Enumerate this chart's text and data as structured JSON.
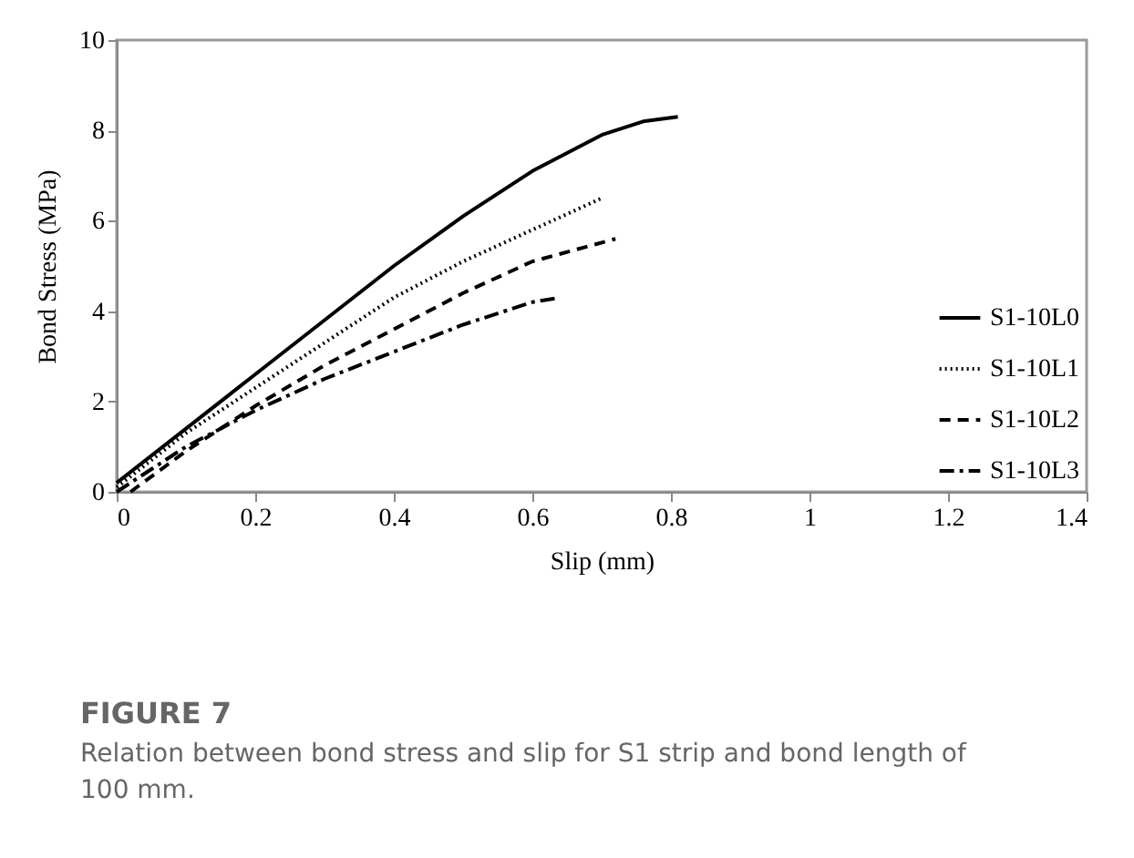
{
  "chart_data": {
    "type": "line",
    "xlabel": "Slip (mm)",
    "ylabel": "Bond Stress (MPa)",
    "xlim": [
      0,
      1.4
    ],
    "xticks": [
      0,
      0.2,
      0.4,
      0.6,
      0.8,
      1,
      1.2,
      1.4
    ],
    "ylim": [
      0,
      10
    ],
    "yticks": [
      0,
      2,
      4,
      6,
      8,
      10
    ],
    "grid": false,
    "legend": "bottom right",
    "marker": "none",
    "annotations": [
      "FIGURE 7",
      "Relation between bond stress and slip for S1 strip and bond length of 100 mm."
    ],
    "series": [
      {
        "name": "S1-10L0",
        "color": "#000000",
        "line_style": "solid",
        "x": [
          0,
          0.1,
          0.2,
          0.3,
          0.4,
          0.5,
          0.6,
          0.7,
          0.76,
          0.81
        ],
        "values": [
          0.2,
          1.4,
          2.6,
          3.8,
          5.0,
          6.1,
          7.1,
          7.9,
          8.2,
          8.3
        ]
      },
      {
        "name": "S1-10L1",
        "color": "#000000",
        "line_style": "dotted",
        "x": [
          0,
          0.1,
          0.2,
          0.3,
          0.4,
          0.5,
          0.6,
          0.7
        ],
        "values": [
          0.1,
          1.3,
          2.3,
          3.3,
          4.3,
          5.1,
          5.8,
          6.5
        ]
      },
      {
        "name": "S1-10L2",
        "color": "#000000",
        "line_style": "dashed",
        "x": [
          0.02,
          0.1,
          0.2,
          0.3,
          0.4,
          0.5,
          0.6,
          0.72
        ],
        "values": [
          0,
          0.9,
          1.9,
          2.8,
          3.6,
          4.4,
          5.1,
          5.6
        ]
      },
      {
        "name": "S1-10L3",
        "color": "#000000",
        "line_style": "dashdot",
        "x": [
          0,
          0.1,
          0.2,
          0.3,
          0.4,
          0.5,
          0.6,
          0.64
        ],
        "values": [
          0,
          1.0,
          1.8,
          2.5,
          3.1,
          3.7,
          4.2,
          4.3
        ]
      }
    ]
  }
}
